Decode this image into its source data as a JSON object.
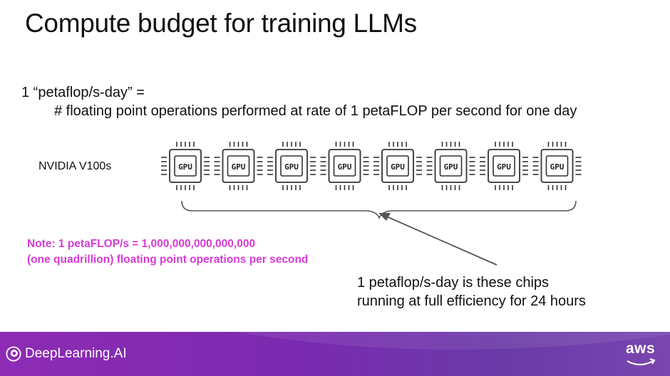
{
  "slide": {
    "title": "Compute budget for training LLMs",
    "definition_line1": "1 “petaflop/s-day” =",
    "definition_line2": "# floating point operations performed at rate of 1 petaFLOP per second for one day",
    "gpu_row_label": "NVIDIA V100s",
    "gpu_chip_label": "GPU",
    "gpu_chip_count": 8,
    "note_line1": "Note: 1 petaFLOP/s = 1,000,000,000,000,000",
    "note_line2": "(one quadrillion) floating point operations per second",
    "caption_line1": "1 petaflop/s-day  is these chips",
    "caption_line2": "running at full efficiency for 24 hours"
  },
  "footer": {
    "brand": "DeepLearning.AI",
    "partner_logo": "aws",
    "brand_logo_icon": "deeplearning-ai-logo-icon",
    "partner_logo_icon": "aws-smile-logo-icon"
  },
  "colors": {
    "note": "#d63bd6",
    "footer_start": "#8e2bb4",
    "footer_end": "#7a46b0"
  }
}
